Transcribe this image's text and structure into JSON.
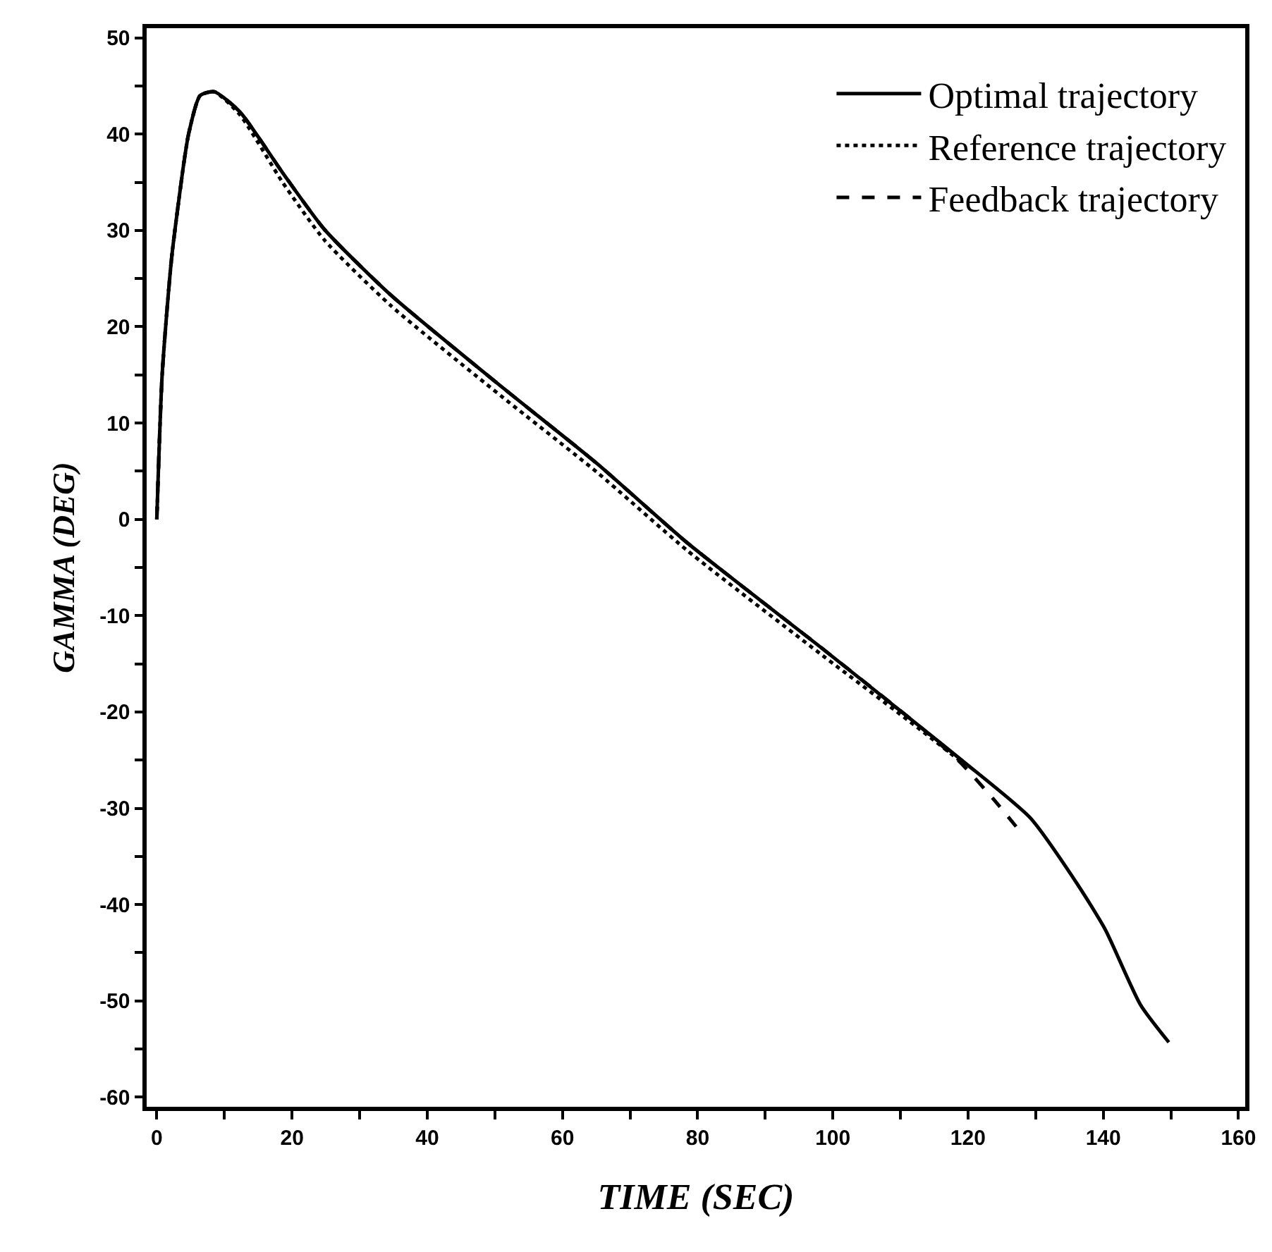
{
  "chart_data": {
    "type": "line",
    "xlabel": "TIME (SEC)",
    "ylabel": "GAMMA (DEG)",
    "xlim": [
      -1.5,
      161
    ],
    "ylim": [
      -61,
      51
    ],
    "xticks": [
      0,
      {
        "value": 10,
        "label": null
      },
      20,
      {
        "value": 30,
        "label": null
      },
      40,
      {
        "value": 50,
        "label": null
      },
      60,
      {
        "value": 70,
        "label": null
      },
      80,
      {
        "value": 90,
        "label": null
      },
      100,
      {
        "value": 110,
        "label": null
      },
      120,
      {
        "value": 130,
        "label": null
      },
      140,
      {
        "value": 150,
        "label": null
      },
      160
    ],
    "yticks": [
      -60,
      {
        "value": -55,
        "label": null
      },
      -50,
      {
        "value": -45,
        "label": null
      },
      -40,
      {
        "value": -35,
        "label": null
      },
      -30,
      {
        "value": -25,
        "label": null
      },
      -20,
      {
        "value": -15,
        "label": null
      },
      -10,
      {
        "value": -5,
        "label": null
      },
      0,
      {
        "value": 5,
        "label": null
      },
      10,
      {
        "value": 15,
        "label": null
      },
      20,
      {
        "value": 25,
        "label": null
      },
      30,
      {
        "value": 35,
        "label": null
      },
      40,
      {
        "value": 45,
        "label": null
      },
      50
    ],
    "legend": "top right",
    "marker": "none",
    "series": [
      {
        "name": "Optimal trajectory",
        "color": "#000000",
        "line_style": "solid",
        "x": [
          0,
          0.8,
          2.2,
          4.0,
          4.7,
          6.4,
          8.5,
          12.3,
          18.6,
          24.8,
          34.6,
          51.3,
          65.1,
          78.4,
          98.6,
          112.5,
          119.4,
          129.2,
          136.1,
          140.3,
          145.5,
          149.7
        ],
        "values": [
          0,
          15.1,
          27.2,
          37,
          40,
          44,
          44.4,
          42.3,
          36,
          30.1,
          23.3,
          13.6,
          5.8,
          -2.4,
          -13.5,
          -21.3,
          -25.2,
          -31,
          -37.8,
          -42.6,
          -50.4,
          -54.3
        ]
      },
      {
        "name": "Reference trajectory",
        "color": "#000000",
        "line_style": "dotted",
        "x": [
          0,
          0.8,
          2.2,
          4.0,
          4.7,
          6.4,
          8.5,
          12.3,
          18.6,
          24.8,
          34.6,
          51.3,
          65.1,
          78.4,
          98.6,
          112.5,
          119.4
        ],
        "values": [
          0,
          15.1,
          27.2,
          37,
          40,
          44,
          44.4,
          42,
          35,
          29,
          22.2,
          12.6,
          4.9,
          -3.2,
          -14.2,
          -21.6,
          -25.4
        ]
      },
      {
        "name": "Feedback trajectory",
        "color": "#000000",
        "line_style": "dashed",
        "x": [
          0,
          0.8,
          2.2,
          4.0,
          4.7,
          6.4,
          8.5,
          12.3,
          18.6,
          24.8,
          34.6,
          51.3,
          65.1,
          78.4,
          98.6,
          112.5,
          118.8,
          123.7,
          127.8
        ],
        "values": [
          0,
          15.1,
          27.2,
          37,
          40,
          44,
          44.4,
          42.3,
          36,
          30.1,
          23.3,
          13.6,
          5.8,
          -2.4,
          -13.5,
          -21.3,
          -25.2,
          -29,
          -32.5
        ]
      }
    ]
  }
}
